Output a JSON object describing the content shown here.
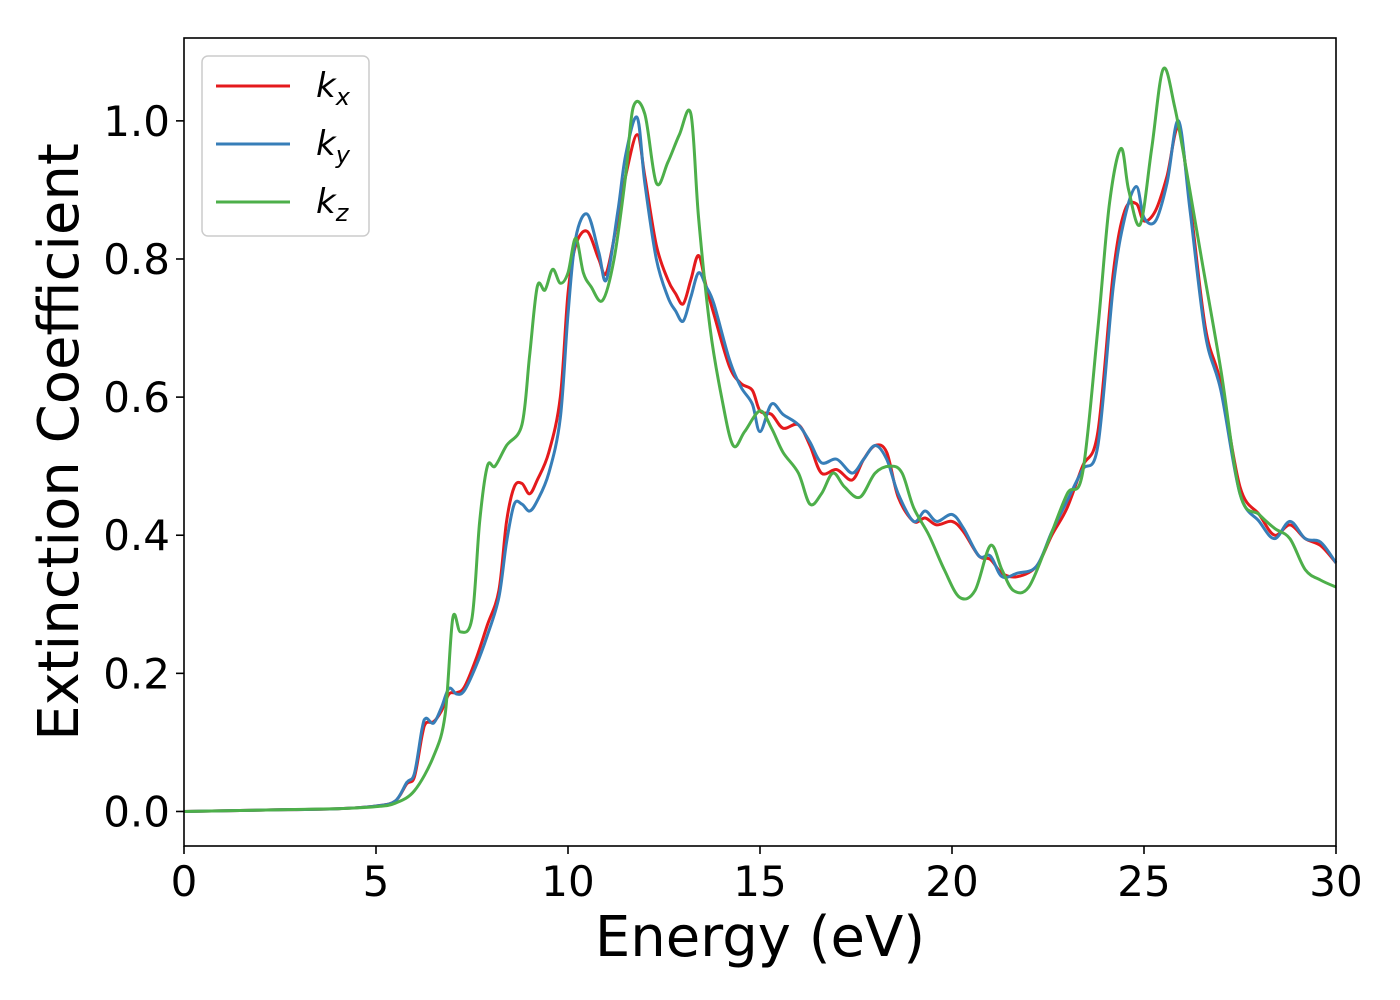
{
  "chart_data": {
    "type": "line",
    "title": "",
    "xlabel": "Energy (eV)",
    "ylabel": "Extinction Coefficient",
    "xlim": [
      0,
      30
    ],
    "ylim": [
      -0.05,
      1.12
    ],
    "xticks": [
      0,
      5,
      10,
      15,
      20,
      25,
      30
    ],
    "yticks": [
      0.0,
      0.2,
      0.4,
      0.6,
      0.8,
      1.0
    ],
    "grid": false,
    "legend_position": "top-left",
    "series": [
      {
        "name": "k_x",
        "label_base": "k",
        "label_sub": "x",
        "color": "#e41a1c",
        "points": [
          [
            0,
            0.0
          ],
          [
            2,
            0.002
          ],
          [
            4,
            0.004
          ],
          [
            5,
            0.008
          ],
          [
            5.5,
            0.015
          ],
          [
            5.8,
            0.04
          ],
          [
            6.0,
            0.05
          ],
          [
            6.2,
            0.11
          ],
          [
            6.3,
            0.128
          ],
          [
            6.5,
            0.13
          ],
          [
            6.7,
            0.145
          ],
          [
            6.9,
            0.17
          ],
          [
            7.1,
            0.172
          ],
          [
            7.3,
            0.18
          ],
          [
            7.6,
            0.22
          ],
          [
            7.9,
            0.27
          ],
          [
            8.2,
            0.32
          ],
          [
            8.4,
            0.42
          ],
          [
            8.6,
            0.47
          ],
          [
            8.8,
            0.475
          ],
          [
            9.0,
            0.46
          ],
          [
            9.2,
            0.48
          ],
          [
            9.5,
            0.52
          ],
          [
            9.8,
            0.6
          ],
          [
            10.0,
            0.75
          ],
          [
            10.2,
            0.82
          ],
          [
            10.5,
            0.84
          ],
          [
            10.8,
            0.8
          ],
          [
            11.0,
            0.78
          ],
          [
            11.3,
            0.86
          ],
          [
            11.5,
            0.92
          ],
          [
            11.8,
            0.98
          ],
          [
            12.0,
            0.92
          ],
          [
            12.3,
            0.82
          ],
          [
            12.6,
            0.77
          ],
          [
            12.8,
            0.75
          ],
          [
            13.0,
            0.735
          ],
          [
            13.2,
            0.77
          ],
          [
            13.4,
            0.805
          ],
          [
            13.6,
            0.76
          ],
          [
            13.8,
            0.72
          ],
          [
            14.2,
            0.645
          ],
          [
            14.5,
            0.62
          ],
          [
            14.8,
            0.61
          ],
          [
            15.0,
            0.58
          ],
          [
            15.3,
            0.575
          ],
          [
            15.6,
            0.555
          ],
          [
            16.0,
            0.56
          ],
          [
            16.3,
            0.53
          ],
          [
            16.6,
            0.49
          ],
          [
            17.0,
            0.495
          ],
          [
            17.4,
            0.48
          ],
          [
            17.7,
            0.51
          ],
          [
            18.0,
            0.53
          ],
          [
            18.3,
            0.52
          ],
          [
            18.6,
            0.455
          ],
          [
            19.0,
            0.42
          ],
          [
            19.3,
            0.425
          ],
          [
            19.6,
            0.415
          ],
          [
            20.0,
            0.42
          ],
          [
            20.3,
            0.405
          ],
          [
            20.7,
            0.37
          ],
          [
            21.0,
            0.365
          ],
          [
            21.3,
            0.345
          ],
          [
            21.7,
            0.34
          ],
          [
            22.2,
            0.355
          ],
          [
            22.6,
            0.4
          ],
          [
            23.0,
            0.44
          ],
          [
            23.4,
            0.5
          ],
          [
            23.8,
            0.55
          ],
          [
            24.2,
            0.78
          ],
          [
            24.5,
            0.87
          ],
          [
            24.8,
            0.88
          ],
          [
            25.0,
            0.855
          ],
          [
            25.3,
            0.87
          ],
          [
            25.6,
            0.92
          ],
          [
            25.9,
            0.99
          ],
          [
            26.2,
            0.88
          ],
          [
            26.6,
            0.7
          ],
          [
            27.0,
            0.62
          ],
          [
            27.5,
            0.47
          ],
          [
            28.0,
            0.43
          ],
          [
            28.4,
            0.4
          ],
          [
            28.8,
            0.415
          ],
          [
            29.2,
            0.395
          ],
          [
            29.6,
            0.385
          ],
          [
            30.0,
            0.36
          ]
        ]
      },
      {
        "name": "k_y",
        "label_base": "k",
        "label_sub": "y",
        "color": "#377eb8",
        "points": [
          [
            0,
            0.0
          ],
          [
            2,
            0.002
          ],
          [
            4,
            0.004
          ],
          [
            5,
            0.008
          ],
          [
            5.5,
            0.015
          ],
          [
            5.8,
            0.042
          ],
          [
            6.0,
            0.055
          ],
          [
            6.2,
            0.12
          ],
          [
            6.3,
            0.135
          ],
          [
            6.5,
            0.128
          ],
          [
            6.7,
            0.15
          ],
          [
            6.9,
            0.178
          ],
          [
            7.1,
            0.17
          ],
          [
            7.3,
            0.175
          ],
          [
            7.6,
            0.21
          ],
          [
            7.9,
            0.255
          ],
          [
            8.2,
            0.31
          ],
          [
            8.4,
            0.39
          ],
          [
            8.6,
            0.445
          ],
          [
            8.8,
            0.445
          ],
          [
            9.0,
            0.435
          ],
          [
            9.2,
            0.45
          ],
          [
            9.5,
            0.49
          ],
          [
            9.8,
            0.57
          ],
          [
            10.0,
            0.72
          ],
          [
            10.2,
            0.83
          ],
          [
            10.5,
            0.865
          ],
          [
            10.8,
            0.81
          ],
          [
            11.0,
            0.77
          ],
          [
            11.3,
            0.87
          ],
          [
            11.5,
            0.95
          ],
          [
            11.8,
            1.005
          ],
          [
            12.0,
            0.91
          ],
          [
            12.3,
            0.8
          ],
          [
            12.6,
            0.745
          ],
          [
            12.8,
            0.725
          ],
          [
            13.0,
            0.71
          ],
          [
            13.2,
            0.745
          ],
          [
            13.4,
            0.78
          ],
          [
            13.6,
            0.76
          ],
          [
            13.8,
            0.735
          ],
          [
            14.2,
            0.655
          ],
          [
            14.5,
            0.615
          ],
          [
            14.8,
            0.59
          ],
          [
            15.0,
            0.55
          ],
          [
            15.3,
            0.59
          ],
          [
            15.6,
            0.575
          ],
          [
            16.0,
            0.56
          ],
          [
            16.3,
            0.535
          ],
          [
            16.6,
            0.505
          ],
          [
            17.0,
            0.51
          ],
          [
            17.4,
            0.49
          ],
          [
            17.7,
            0.51
          ],
          [
            18.0,
            0.53
          ],
          [
            18.3,
            0.51
          ],
          [
            18.6,
            0.46
          ],
          [
            19.0,
            0.42
          ],
          [
            19.3,
            0.435
          ],
          [
            19.6,
            0.42
          ],
          [
            20.0,
            0.43
          ],
          [
            20.3,
            0.41
          ],
          [
            20.7,
            0.37
          ],
          [
            21.0,
            0.37
          ],
          [
            21.3,
            0.34
          ],
          [
            21.7,
            0.345
          ],
          [
            22.2,
            0.355
          ],
          [
            22.6,
            0.405
          ],
          [
            23.0,
            0.45
          ],
          [
            23.4,
            0.495
          ],
          [
            23.8,
            0.53
          ],
          [
            24.2,
            0.76
          ],
          [
            24.5,
            0.86
          ],
          [
            24.8,
            0.905
          ],
          [
            25.0,
            0.86
          ],
          [
            25.3,
            0.855
          ],
          [
            25.6,
            0.91
          ],
          [
            25.9,
            1.0
          ],
          [
            26.2,
            0.87
          ],
          [
            26.6,
            0.69
          ],
          [
            27.0,
            0.61
          ],
          [
            27.5,
            0.46
          ],
          [
            28.0,
            0.42
          ],
          [
            28.4,
            0.395
          ],
          [
            28.8,
            0.42
          ],
          [
            29.2,
            0.395
          ],
          [
            29.6,
            0.39
          ],
          [
            30.0,
            0.36
          ]
        ]
      },
      {
        "name": "k_z",
        "label_base": "k",
        "label_sub": "z",
        "color": "#4daf4a",
        "points": [
          [
            0,
            0.0
          ],
          [
            2,
            0.002
          ],
          [
            4,
            0.004
          ],
          [
            5,
            0.007
          ],
          [
            5.5,
            0.012
          ],
          [
            6.0,
            0.03
          ],
          [
            6.5,
            0.08
          ],
          [
            6.8,
            0.14
          ],
          [
            7.0,
            0.28
          ],
          [
            7.2,
            0.26
          ],
          [
            7.5,
            0.28
          ],
          [
            7.7,
            0.42
          ],
          [
            7.9,
            0.5
          ],
          [
            8.1,
            0.5
          ],
          [
            8.4,
            0.53
          ],
          [
            8.8,
            0.56
          ],
          [
            9.0,
            0.66
          ],
          [
            9.2,
            0.76
          ],
          [
            9.4,
            0.755
          ],
          [
            9.6,
            0.785
          ],
          [
            9.8,
            0.765
          ],
          [
            10.0,
            0.78
          ],
          [
            10.2,
            0.83
          ],
          [
            10.4,
            0.78
          ],
          [
            10.6,
            0.76
          ],
          [
            10.9,
            0.74
          ],
          [
            11.2,
            0.8
          ],
          [
            11.5,
            0.92
          ],
          [
            11.7,
            1.02
          ],
          [
            12.0,
            1.01
          ],
          [
            12.3,
            0.91
          ],
          [
            12.6,
            0.94
          ],
          [
            12.9,
            0.98
          ],
          [
            13.2,
            1.01
          ],
          [
            13.4,
            0.86
          ],
          [
            13.7,
            0.7
          ],
          [
            14.0,
            0.6
          ],
          [
            14.3,
            0.53
          ],
          [
            14.6,
            0.55
          ],
          [
            15.0,
            0.58
          ],
          [
            15.3,
            0.555
          ],
          [
            15.6,
            0.52
          ],
          [
            16.0,
            0.49
          ],
          [
            16.3,
            0.445
          ],
          [
            16.6,
            0.46
          ],
          [
            16.9,
            0.49
          ],
          [
            17.2,
            0.47
          ],
          [
            17.6,
            0.455
          ],
          [
            18.0,
            0.49
          ],
          [
            18.4,
            0.5
          ],
          [
            18.7,
            0.49
          ],
          [
            19.0,
            0.44
          ],
          [
            19.4,
            0.4
          ],
          [
            19.8,
            0.35
          ],
          [
            20.2,
            0.31
          ],
          [
            20.6,
            0.32
          ],
          [
            21.0,
            0.385
          ],
          [
            21.3,
            0.35
          ],
          [
            21.6,
            0.32
          ],
          [
            22.0,
            0.325
          ],
          [
            22.5,
            0.39
          ],
          [
            23.0,
            0.46
          ],
          [
            23.4,
            0.49
          ],
          [
            23.8,
            0.7
          ],
          [
            24.1,
            0.88
          ],
          [
            24.4,
            0.96
          ],
          [
            24.6,
            0.9
          ],
          [
            24.9,
            0.85
          ],
          [
            25.2,
            0.96
          ],
          [
            25.5,
            1.075
          ],
          [
            25.8,
            1.02
          ],
          [
            26.1,
            0.93
          ],
          [
            26.5,
            0.8
          ],
          [
            27.0,
            0.64
          ],
          [
            27.5,
            0.46
          ],
          [
            28.0,
            0.43
          ],
          [
            28.4,
            0.41
          ],
          [
            28.8,
            0.395
          ],
          [
            29.2,
            0.35
          ],
          [
            29.6,
            0.335
          ],
          [
            30.0,
            0.325
          ]
        ]
      }
    ]
  }
}
